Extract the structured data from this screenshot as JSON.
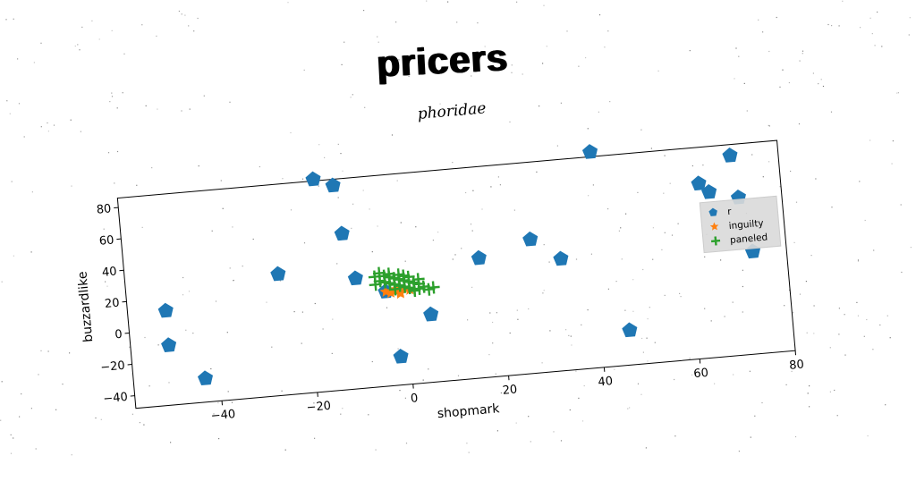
{
  "page_title": "pricers",
  "chart_data": {
    "type": "scatter",
    "title": "phoridae",
    "xlabel": "shopmark",
    "ylabel": "buzzardlike",
    "xlim": [
      -58,
      80
    ],
    "ylim": [
      -48,
      86
    ],
    "xticks": [
      -40,
      -20,
      0,
      20,
      40,
      60,
      80
    ],
    "yticks": [
      -40,
      -20,
      0,
      20,
      40,
      60,
      80
    ],
    "legend": "right",
    "series": [
      {
        "name": "r",
        "marker": "pentagon",
        "color": "#1f77b4",
        "x": [
          -50,
          -50,
          -43,
          -26,
          -17,
          -13,
          -12,
          -10,
          -4,
          -2,
          5,
          16,
          27,
          33,
          41,
          46,
          63,
          65,
          70,
          71,
          73
        ],
        "y": [
          12,
          -10,
          -33,
          29,
          87,
          82,
          51,
          22,
          12,
          -30,
          -5,
          28,
          37,
          23,
          89,
          -26,
          63,
          57,
          79,
          52,
          17
        ]
      },
      {
        "name": "inguilty",
        "marker": "star",
        "color": "#ff7f0e",
        "x": [
          -3,
          -2,
          -1,
          0,
          -2,
          -1,
          1,
          -4
        ],
        "y": [
          11,
          12,
          10,
          13,
          13,
          11,
          12,
          12
        ]
      },
      {
        "name": "paneled",
        "marker": "plus",
        "color": "#2ca02c",
        "x": [
          -6,
          -5,
          -5,
          -4,
          -4,
          -3,
          -3,
          -2,
          -2,
          -1,
          -1,
          0,
          0,
          1,
          1,
          2,
          2,
          3,
          3,
          4,
          5,
          -3,
          -1,
          1,
          3,
          -6,
          6,
          0,
          -2,
          2
        ],
        "y": [
          22,
          19,
          24,
          18,
          22,
          17,
          21,
          16,
          20,
          15,
          19,
          14,
          18,
          13,
          17,
          12,
          16,
          12,
          15,
          13,
          11,
          23,
          22,
          20,
          18,
          17,
          12,
          21,
          13,
          11
        ]
      }
    ]
  }
}
